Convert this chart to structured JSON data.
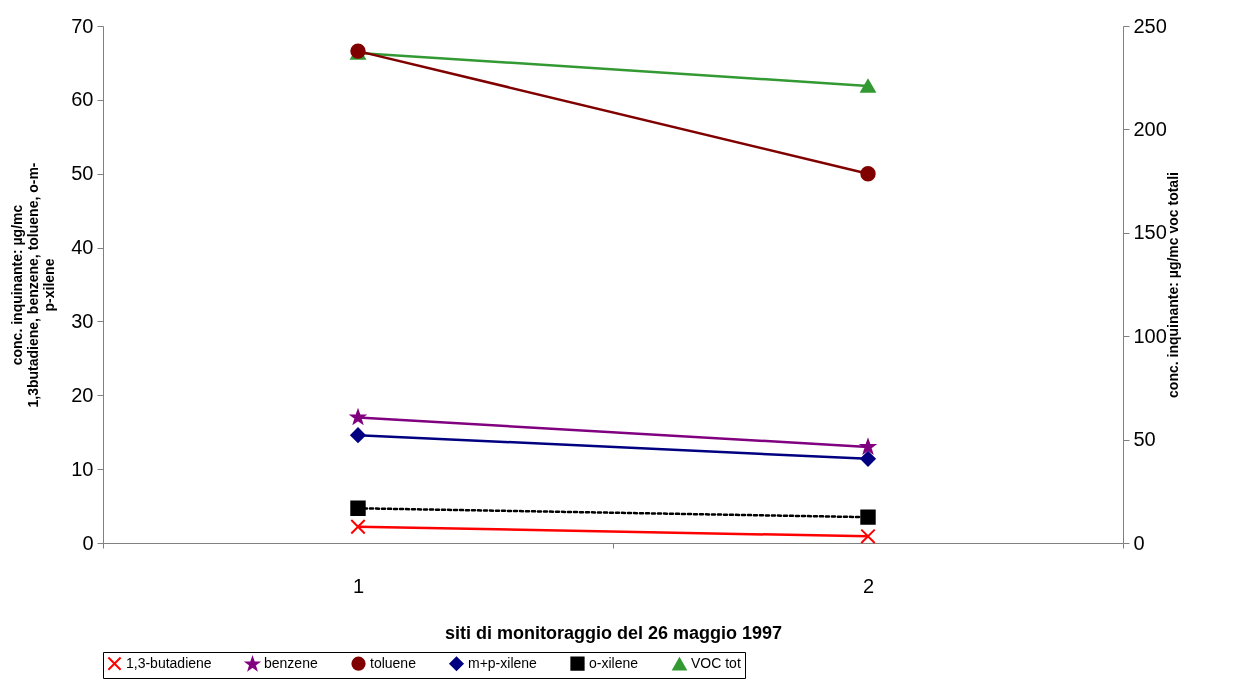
{
  "chart_data": {
    "type": "line",
    "xlabel": "siti di monitoraggio del 26 maggio 1997",
    "ylabel": "conc. inquinante: µg/mc\n1,3butadiene, benzene, toluene, o-m-\np-xilene",
    "y2label": "conc. inquinante: µg/mc voc totali",
    "categories": [
      "1",
      "2"
    ],
    "series": [
      {
        "name": "1,3-butadiene",
        "color": "#ff0000",
        "marker": "cross",
        "values": [
          2.2,
          0.9
        ]
      },
      {
        "name": "benzene",
        "color": "#800080",
        "marker": "star",
        "values": [
          17.0,
          13.0
        ]
      },
      {
        "name": "toluene",
        "color": "#800000",
        "marker": "circle",
        "values": [
          66.6,
          50.0
        ]
      },
      {
        "name": "m+p-xilene",
        "color": "#000080",
        "marker": "diamond",
        "values": [
          14.6,
          11.4
        ]
      },
      {
        "name": "o-xilene",
        "color": "#000000",
        "marker": "square",
        "line_style": "dotted",
        "values": [
          4.7,
          3.5
        ]
      },
      {
        "name": "VOC tot",
        "color": "#339933",
        "marker": "triangle",
        "axis": "y2",
        "values": [
          237,
          221
        ]
      }
    ],
    "ylim": [
      0,
      70
    ],
    "yticks": [
      0,
      10,
      20,
      30,
      40,
      50,
      60,
      70
    ],
    "y2lim": [
      0,
      250
    ],
    "y2ticks": [
      0,
      50,
      100,
      150,
      200,
      250
    ],
    "grid": false,
    "legend": "bottom"
  }
}
